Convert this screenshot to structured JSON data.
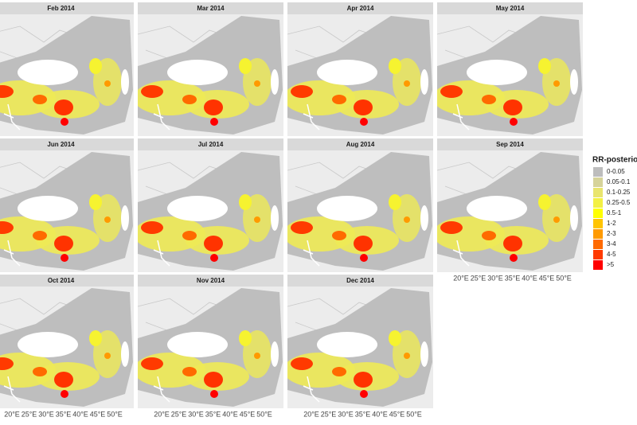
{
  "panels": [
    {
      "title": "Feb 2014"
    },
    {
      "title": "Mar 2014"
    },
    {
      "title": "Apr 2014"
    },
    {
      "title": "May 2014"
    },
    {
      "title": "Jun 2014"
    },
    {
      "title": "Jul 2014"
    },
    {
      "title": "Aug 2014"
    },
    {
      "title": "Sep 2014"
    },
    {
      "title": "Oct 2014"
    },
    {
      "title": "Nov 2014"
    },
    {
      "title": "Dec 2014"
    }
  ],
  "x_axis_labels": [
    "20°E",
    "25°E",
    "30°E",
    "35°E",
    "40°E",
    "45°E",
    "50°E"
  ],
  "legend": {
    "title": "RR-posterior",
    "items": [
      {
        "label": "0-0.05",
        "color": "#bdbdbd"
      },
      {
        "label": "0.05-0.1",
        "color": "#d6d39a"
      },
      {
        "label": "0.1-0.25",
        "color": "#e9e56e"
      },
      {
        "label": "0.25-0.5",
        "color": "#f3f044"
      },
      {
        "label": "0.5-1",
        "color": "#ffff00"
      },
      {
        "label": "1-2",
        "color": "#ffc400"
      },
      {
        "label": "2-3",
        "color": "#ff9a00"
      },
      {
        "label": "3-4",
        "color": "#ff6a00"
      },
      {
        "label": "4-5",
        "color": "#ff3a00"
      },
      {
        "label": ">5",
        "color": "#ff0000"
      }
    ]
  }
}
